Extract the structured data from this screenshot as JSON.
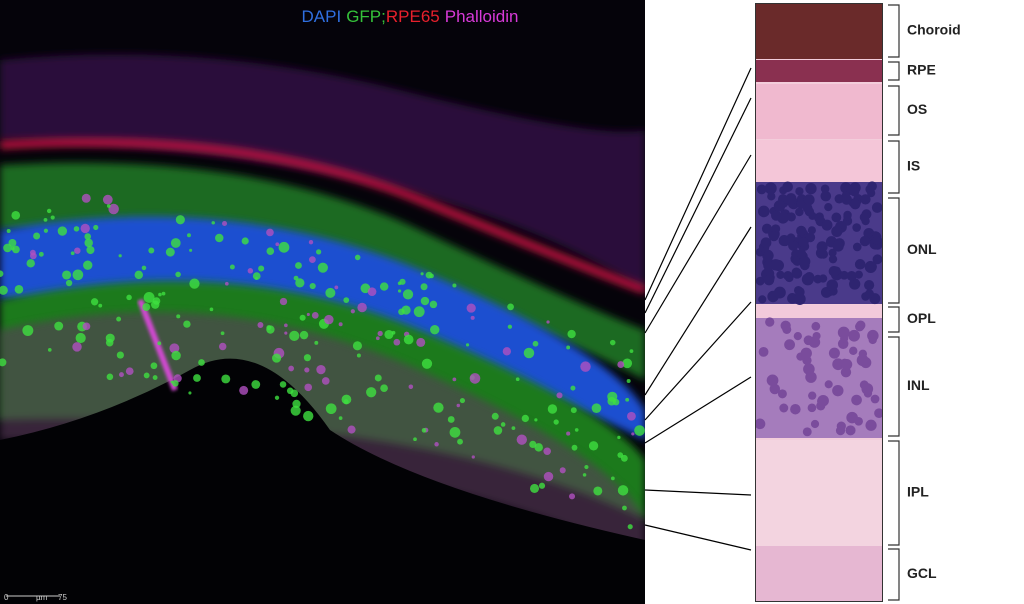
{
  "legend": {
    "items": [
      {
        "text": "DAPI",
        "color": "#2f6fe0"
      },
      {
        "text": "GFP;",
        "color": "#35c23a"
      },
      {
        "text": "RPE65",
        "color": "#e8202c"
      },
      {
        "text": "Phalloidin",
        "color": "#d83ad8"
      }
    ]
  },
  "scale_bar": {
    "start": "0",
    "unit": "µm",
    "end": "75"
  },
  "layers": [
    "Choroid",
    "RPE",
    "OS",
    "IS",
    "ONL",
    "OPL",
    "INL",
    "IPL",
    "GCL"
  ]
}
